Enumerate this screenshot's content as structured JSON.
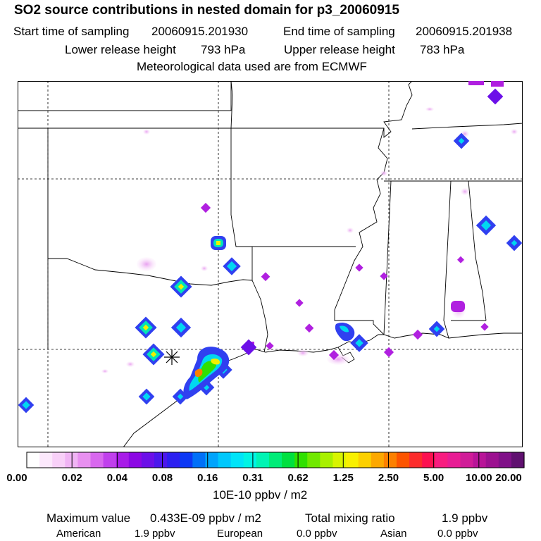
{
  "header": {
    "title": "SO2 source contributions in nested domain for p3_20060915",
    "start_label": "Start time of sampling",
    "start_value": "20060915.201930",
    "end_label": "End time of sampling",
    "end_value": "20060915.201938",
    "lower_label": "Lower release height",
    "lower_value": "793 hPa",
    "upper_label": "Upper release height",
    "upper_value": "783 hPa",
    "met_line": "Meteorological data used are from ECMWF"
  },
  "colorbar": {
    "tick_labels": [
      "0.00",
      "0.02",
      "0.04",
      "0.08",
      "0.16",
      "0.31",
      "0.62",
      "1.25",
      "2.50",
      "5.00",
      "10.00",
      "20.00"
    ],
    "unit_label": "10E-10 ppbv / m2",
    "colors": [
      "#ffffff",
      "#fce8fc",
      "#f8d0f8",
      "#f0b4f4",
      "#e890f0",
      "#d868ee",
      "#c040ec",
      "#a81ce8",
      "#8c08e4",
      "#6c10e8",
      "#4c18ec",
      "#2c20f0",
      "#0c38f4",
      "#0070f8",
      "#00a4fc",
      "#00c8fc",
      "#00e4f8",
      "#00f4e4",
      "#00f4b4",
      "#00ec78",
      "#00e040",
      "#30e000",
      "#70e800",
      "#a8f000",
      "#d8f400",
      "#f8f000",
      "#fcd000",
      "#fca800",
      "#fc8000",
      "#fc5400",
      "#fc2c2c",
      "#fc1050",
      "#f81c80",
      "#e81c94",
      "#d01c98",
      "#b81498",
      "#9c1090",
      "#801088",
      "#601070"
    ]
  },
  "summary": {
    "max_label": "Maximum value",
    "max_value": "0.433E-09 ppbv / m2",
    "total_label": "Total mixing ratio",
    "total_value": "1.9 ppbv",
    "american_label": "American",
    "american_value": "1.9 ppbv",
    "european_label": "European",
    "european_value": "0.0 ppbv",
    "asian_label": "Asian",
    "asian_value": "0.0 ppbv"
  },
  "map": {
    "source_marker": "source-cross-icon",
    "hotspot_colors": {
      "faint": "#f4c8f4",
      "magenta": "#b020e0",
      "blue": "#3040f0",
      "cyan": "#00d8f0",
      "yellow": "#f0f000",
      "orange": "#fc8000"
    }
  }
}
